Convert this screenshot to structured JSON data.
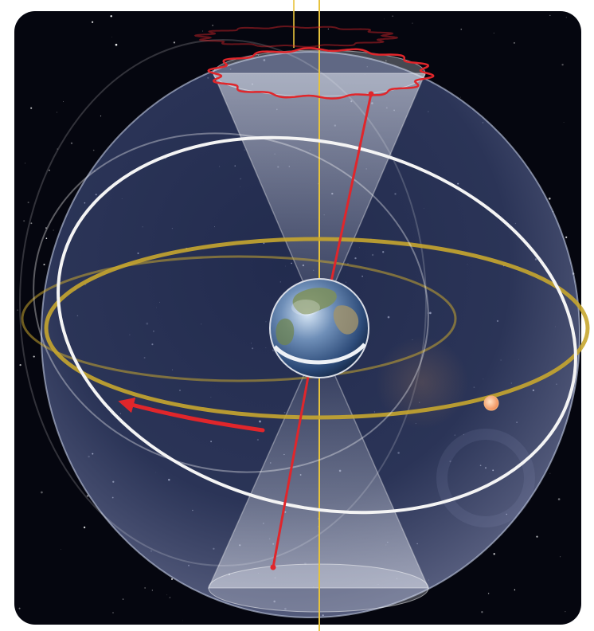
{
  "diagram": {
    "labels": [],
    "colors": {
      "space": "#05060f",
      "sphere": "#6f7fa8",
      "sphere_edge": "#c7d0ea",
      "ecliptic": "#c6a62f",
      "celestial_equator": "#f2f2f2",
      "precession_path": "#e0262b",
      "axis": "#e0262b",
      "ecliptic_axis": "#e8c33c",
      "sun": "#f7b27a",
      "cone": "#d9dde8",
      "frame": "#ffffff"
    },
    "icons": [
      "earth-globe-icon",
      "sun-icon",
      "direction-arrow-icon"
    ]
  }
}
